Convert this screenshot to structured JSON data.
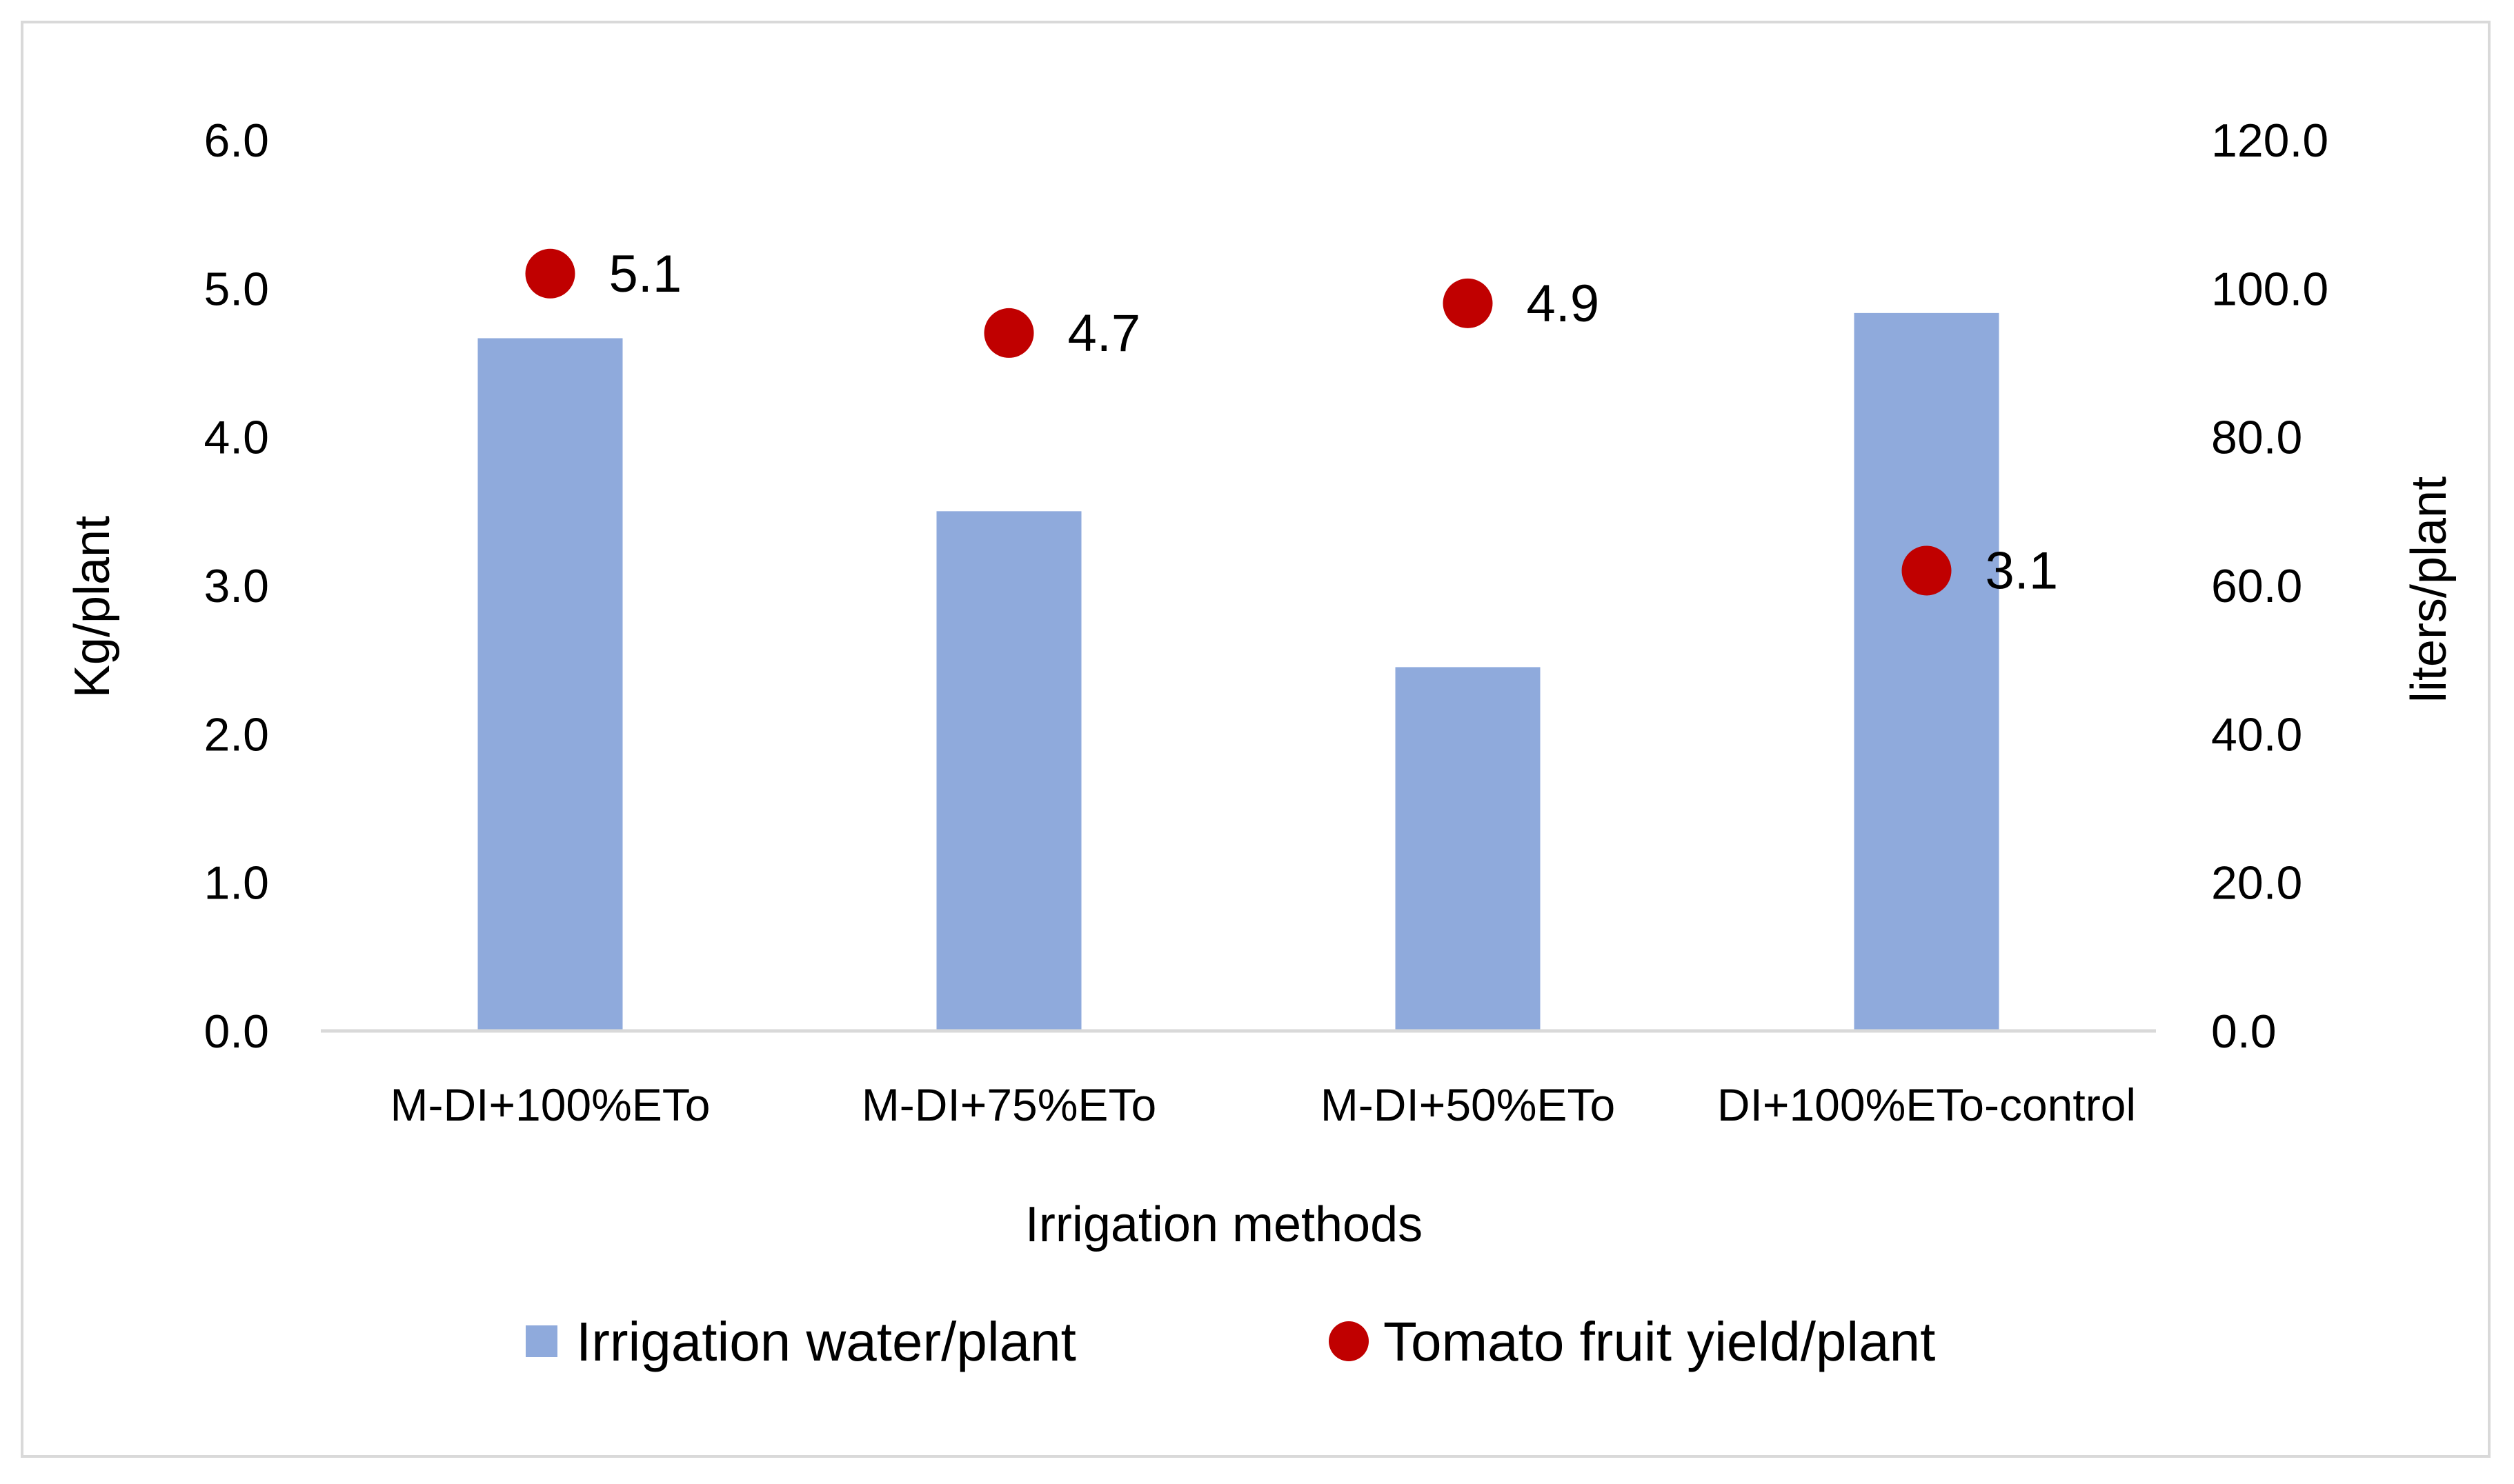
{
  "chart_data": {
    "type": "bar",
    "title": "",
    "categories": [
      "M-DI+100%ETo",
      "M-DI+75%ETo",
      "M-DI+50%ETo",
      "DI+100%ETo-control"
    ],
    "xlabel": "Irrigation methods",
    "ylabel": "Kg/plant",
    "y2label": "liters/plant",
    "ylim": [
      0,
      6
    ],
    "y2lim": [
      0,
      120
    ],
    "yticks": [
      "0.0",
      "1.0",
      "2.0",
      "3.0",
      "4.0",
      "5.0",
      "6.0"
    ],
    "y2ticks": [
      "0.0",
      "20.0",
      "40.0",
      "60.0",
      "80.0",
      "100.0",
      "120.0"
    ],
    "grid": false,
    "legend_position": "bottom",
    "series": [
      {
        "name": "Irrigation water/plant",
        "type": "bar",
        "axis": "right",
        "color": "#8faadc",
        "values": [
          93.3,
          70.0,
          49.0,
          96.7
        ]
      },
      {
        "name": "Tomato fruit yield/plant",
        "type": "scatter",
        "axis": "left",
        "color": "#c00000",
        "values": [
          5.1,
          4.7,
          4.9,
          3.1
        ],
        "labels": [
          "5.1",
          "4.7",
          "4.9",
          "3.1"
        ]
      }
    ]
  }
}
